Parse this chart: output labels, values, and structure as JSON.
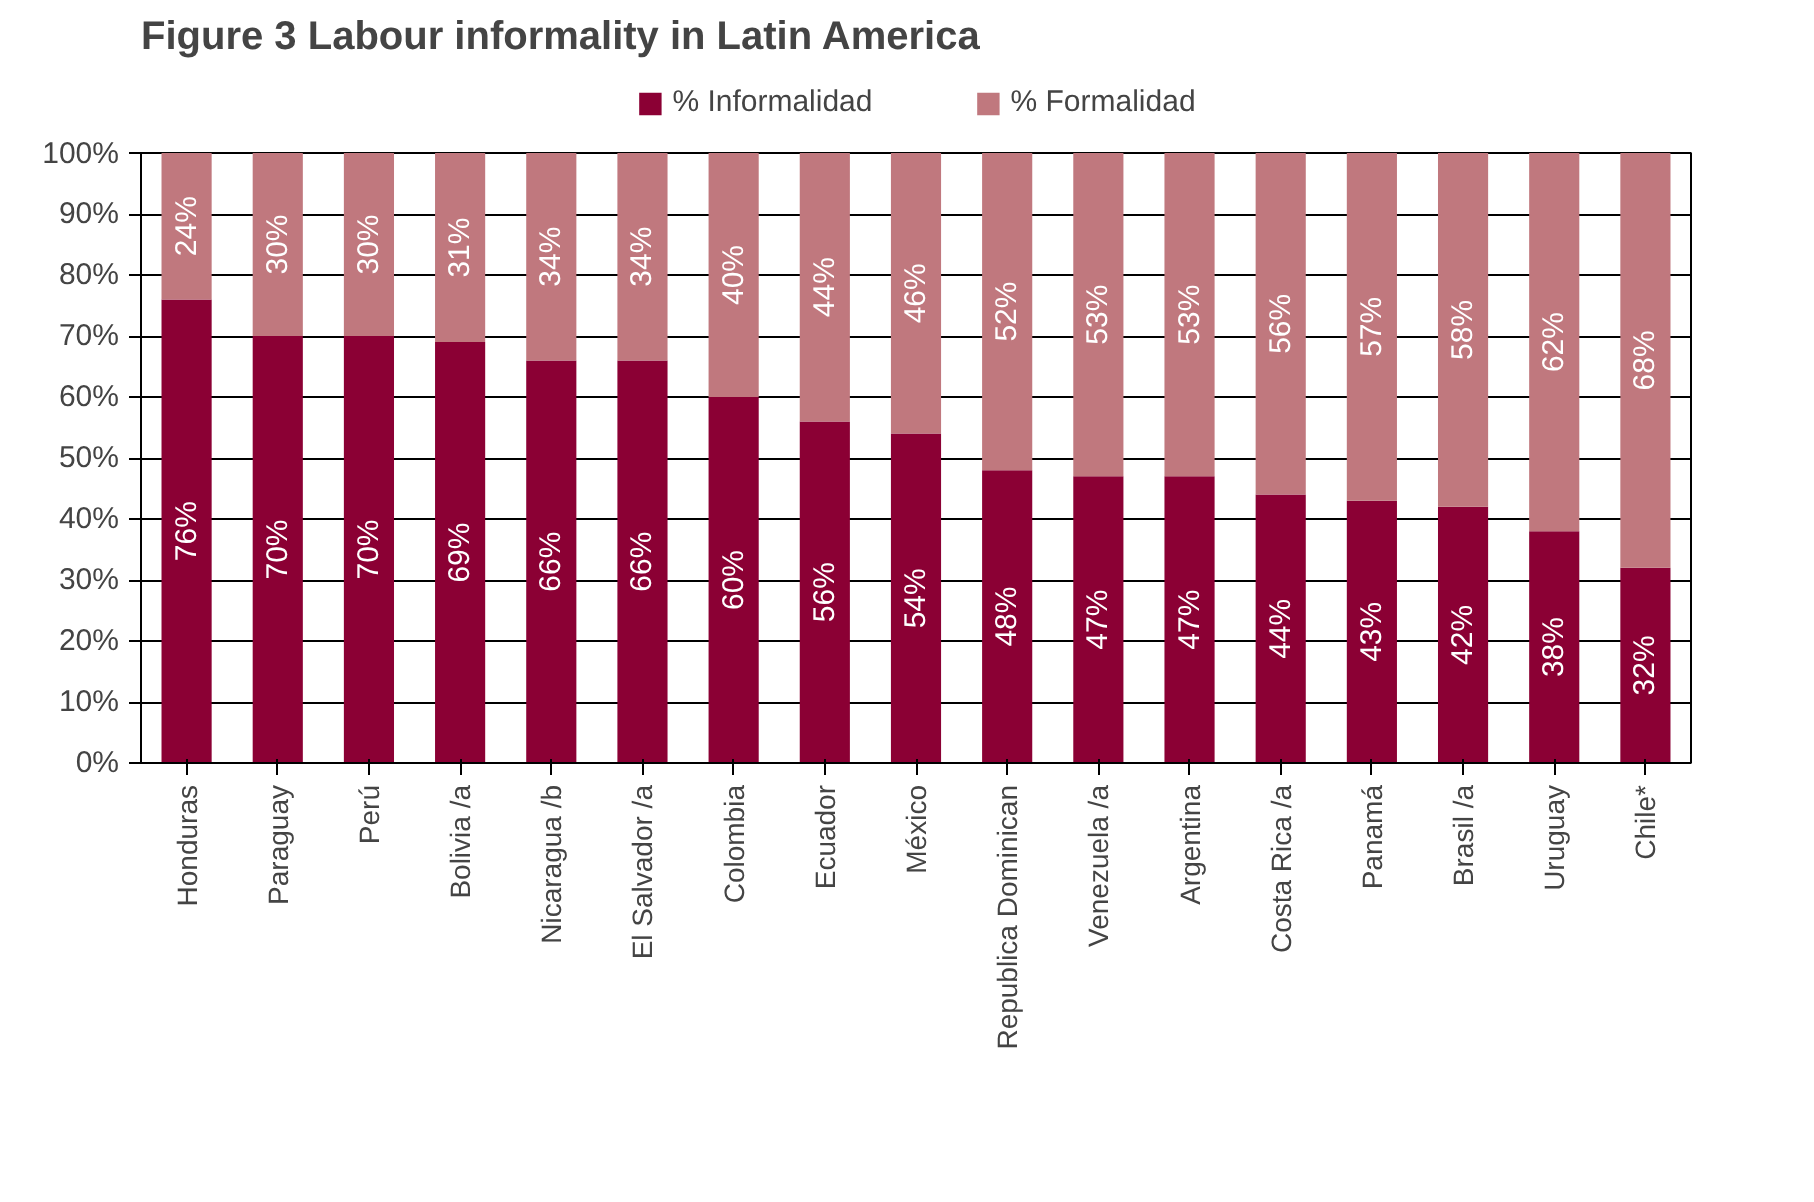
{
  "chart_data": {
    "type": "bar",
    "title": "Figure 3      Labour informality in Latin America",
    "stacked": true,
    "categories": [
      "Honduras",
      "Paraguay",
      "Perú",
      "Bolivia /a",
      "Nicaragua /b",
      "El Salvador /a",
      "Colombia",
      "Ecuador",
      "México",
      "Republica Dominican",
      "Venezuela /a",
      "Argentina",
      "Costa Rica /a",
      "Panamá",
      "Brasil /a",
      "Uruguay",
      "Chile*"
    ],
    "series": [
      {
        "name": "% Informalidad",
        "color": "#8b0034",
        "values": [
          76,
          70,
          70,
          69,
          66,
          66,
          60,
          56,
          54,
          48,
          47,
          47,
          44,
          43,
          42,
          38,
          32
        ],
        "value_labels": [
          "76%",
          "70%",
          "70%",
          "69%",
          "66%",
          "66%",
          "60%",
          "56%",
          "54%",
          "48%",
          "47%",
          "47%",
          "44%",
          "43%",
          "42%",
          "38%",
          "32%"
        ]
      },
      {
        "name": "% Formalidad",
        "color": "#c0787e",
        "values": [
          24,
          30,
          30,
          31,
          34,
          34,
          40,
          44,
          46,
          52,
          53,
          53,
          56,
          57,
          58,
          62,
          68
        ],
        "value_labels": [
          "24%",
          "30%",
          "30%",
          "31%",
          "34%",
          "34%",
          "40%",
          "44%",
          "46%",
          "52%",
          "53%",
          "53%",
          "56%",
          "57%",
          "58%",
          "62%",
          "68%"
        ]
      }
    ],
    "ylim": [
      0,
      100
    ],
    "yticks": [
      {
        "value": 0,
        "label": "0%"
      },
      {
        "value": 10,
        "label": "10%"
      },
      {
        "value": 20,
        "label": "20%"
      },
      {
        "value": 30,
        "label": "30%"
      },
      {
        "value": 40,
        "label": "40%"
      },
      {
        "value": 50,
        "label": "50%"
      },
      {
        "value": 60,
        "label": "60%"
      },
      {
        "value": 70,
        "label": "70%"
      },
      {
        "value": 80,
        "label": "80%"
      },
      {
        "value": 90,
        "label": "90%"
      },
      {
        "value": 100,
        "label": "100%"
      }
    ],
    "grid": "y",
    "legend": "top"
  }
}
